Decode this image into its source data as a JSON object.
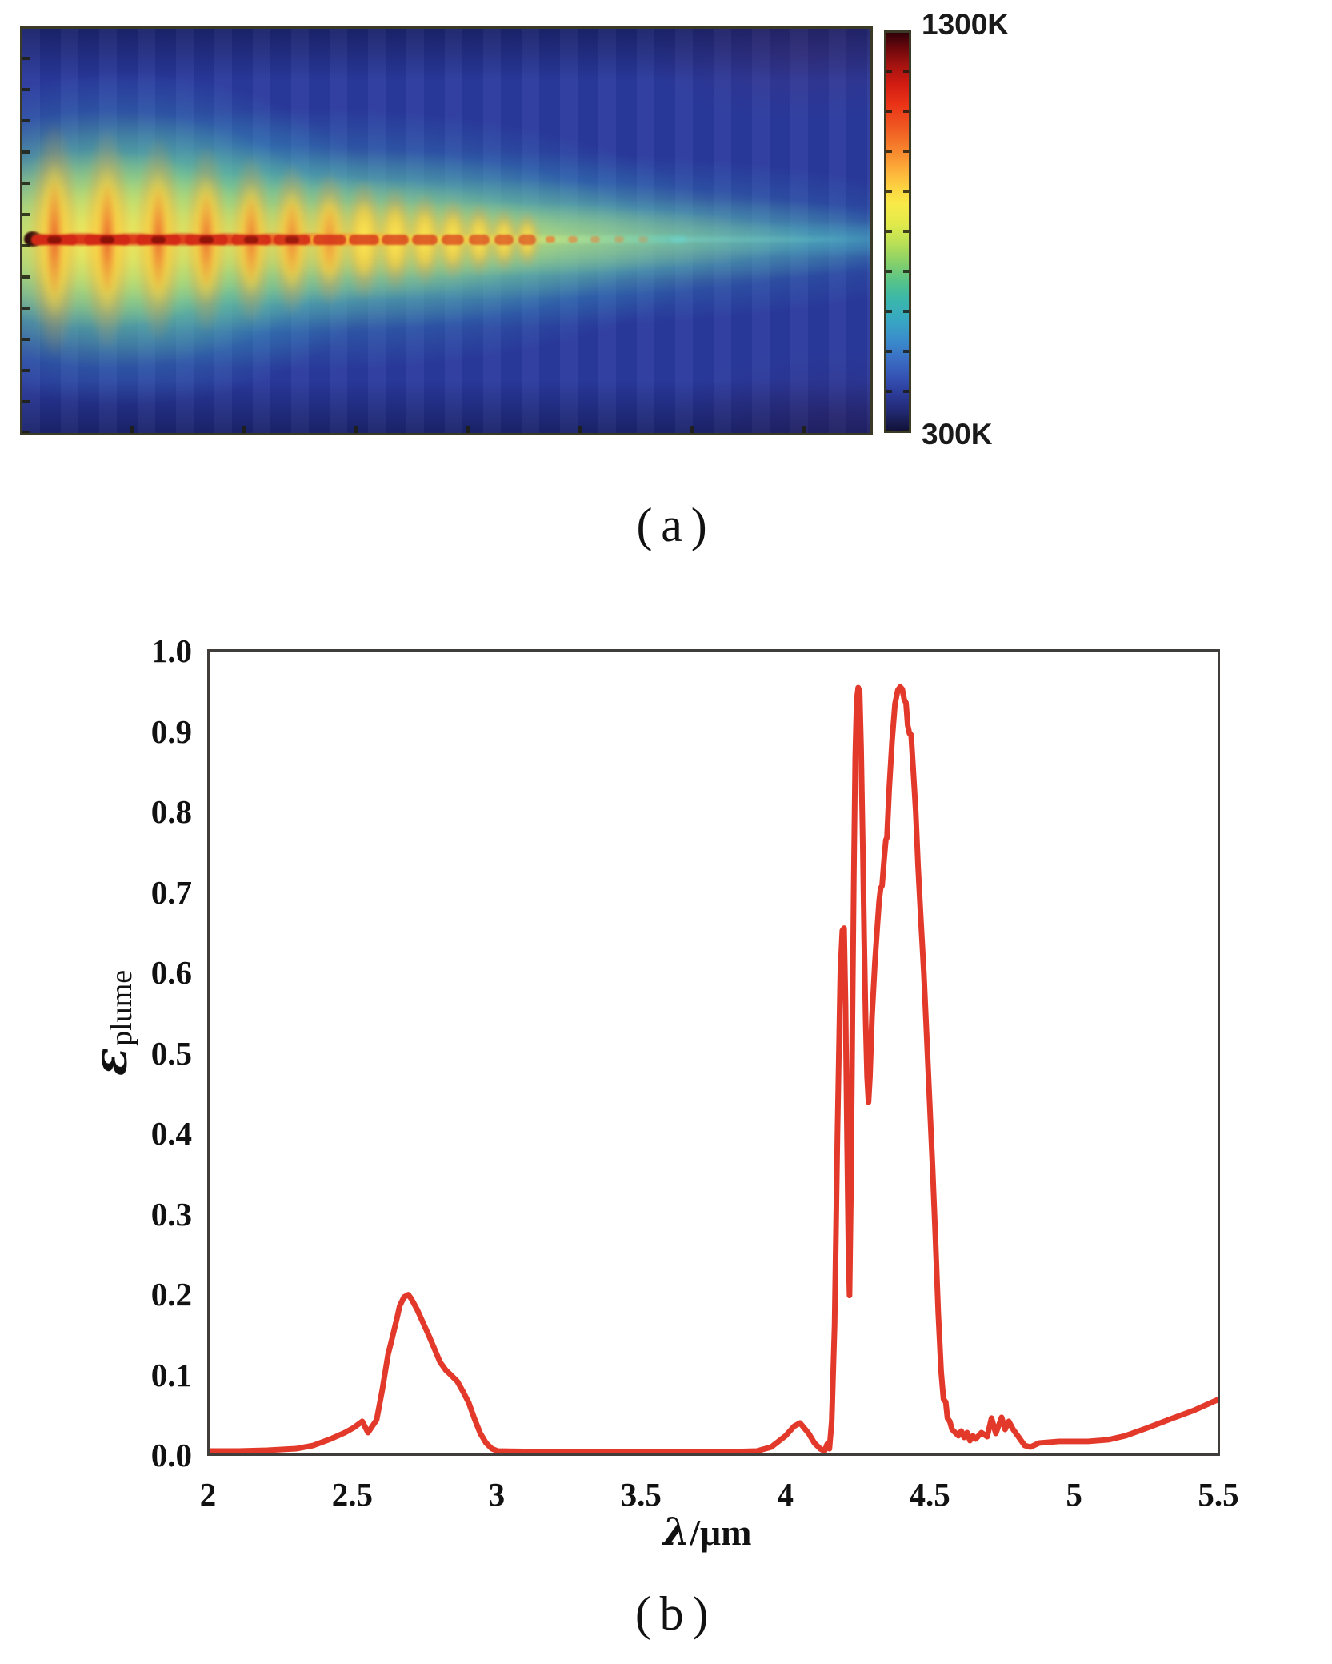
{
  "figure": {
    "panel_a_label": "(a)",
    "panel_b_label": "(b)"
  },
  "chart_data": [
    {
      "id": "plume-temperature-field",
      "type": "heatmap",
      "content": "infrared temperature field of a supersonic exhaust plume with periodic shock cells along the axis",
      "colormap": "jet",
      "colorbar": {
        "max_label": "1300K",
        "min_label": "300K",
        "max_value": 1300,
        "min_value": 300,
        "unit": "K"
      },
      "panel_label": "(a)",
      "shock_cells": [
        [
          40,
          295,
          1.0
        ],
        [
          106,
          280,
          1.0
        ],
        [
          170,
          260,
          0.95
        ],
        [
          230,
          238,
          0.9
        ],
        [
          286,
          215,
          0.82
        ],
        [
          337,
          193,
          0.74
        ],
        [
          384,
          172,
          0.65
        ],
        [
          427,
          152,
          0.56
        ],
        [
          466,
          134,
          0.48
        ],
        [
          503,
          118,
          0.42
        ],
        [
          538,
          104,
          0.36
        ],
        [
          571,
          92,
          0.3
        ],
        [
          602,
          81,
          0.25
        ],
        [
          631,
          72,
          0.2
        ]
      ],
      "tail_dots": [
        [
          660,
          0.75
        ],
        [
          688,
          0.6
        ],
        [
          716,
          0.5
        ],
        [
          746,
          0.4
        ],
        [
          776,
          0.3
        ]
      ]
    },
    {
      "id": "plume-emissivity-spectrum",
      "type": "line",
      "xlabel": "λ/μm",
      "xlabel_parts": [
        "λ",
        "/μm"
      ],
      "ylabel": "ε_plume",
      "ylabel_parts": [
        "ε",
        "plume"
      ],
      "xlim": [
        2,
        5.5
      ],
      "ylim": [
        0,
        1
      ],
      "x_ticks": [
        "2",
        "2.5",
        "3",
        "3.5",
        "4",
        "4.5",
        "5",
        "5.5"
      ],
      "y_ticks": [
        "0.0",
        "0.1",
        "0.2",
        "0.3",
        "0.4",
        "0.5",
        "0.6",
        "0.7",
        "0.8",
        "0.9",
        "1.0"
      ],
      "grid": false,
      "legend": "none",
      "series": [
        {
          "name": "plume spectral emissivity",
          "color": "#e2392b",
          "points": [
            [
              2.0,
              0.003
            ],
            [
              2.1,
              0.003
            ],
            [
              2.2,
              0.004
            ],
            [
              2.3,
              0.006
            ],
            [
              2.36,
              0.01
            ],
            [
              2.42,
              0.018
            ],
            [
              2.47,
              0.026
            ],
            [
              2.5,
              0.032
            ],
            [
              2.53,
              0.04
            ],
            [
              2.55,
              0.026
            ],
            [
              2.58,
              0.042
            ],
            [
              2.6,
              0.08
            ],
            [
              2.62,
              0.124
            ],
            [
              2.63,
              0.138
            ],
            [
              2.65,
              0.168
            ],
            [
              2.66,
              0.184
            ],
            [
              2.675,
              0.195
            ],
            [
              2.69,
              0.198
            ],
            [
              2.7,
              0.193
            ],
            [
              2.72,
              0.18
            ],
            [
              2.74,
              0.164
            ],
            [
              2.76,
              0.148
            ],
            [
              2.78,
              0.131
            ],
            [
              2.8,
              0.114
            ],
            [
              2.82,
              0.104
            ],
            [
              2.84,
              0.097
            ],
            [
              2.86,
              0.09
            ],
            [
              2.88,
              0.077
            ],
            [
              2.9,
              0.063
            ],
            [
              2.92,
              0.043
            ],
            [
              2.94,
              0.025
            ],
            [
              2.96,
              0.013
            ],
            [
              2.98,
              0.006
            ],
            [
              3.0,
              0.003
            ],
            [
              3.2,
              0.002
            ],
            [
              3.4,
              0.002
            ],
            [
              3.6,
              0.002
            ],
            [
              3.8,
              0.002
            ],
            [
              3.9,
              0.003
            ],
            [
              3.95,
              0.008
            ],
            [
              4.0,
              0.022
            ],
            [
              4.03,
              0.034
            ],
            [
              4.05,
              0.038
            ],
            [
              4.08,
              0.025
            ],
            [
              4.1,
              0.013
            ],
            [
              4.12,
              0.006
            ],
            [
              4.135,
              0.003
            ],
            [
              4.145,
              0.012
            ],
            [
              4.152,
              0.006
            ],
            [
              4.16,
              0.04
            ],
            [
              4.17,
              0.16
            ],
            [
              4.18,
              0.4
            ],
            [
              4.19,
              0.6
            ],
            [
              4.197,
              0.652
            ],
            [
              4.203,
              0.655
            ],
            [
              4.208,
              0.56
            ],
            [
              4.213,
              0.4
            ],
            [
              4.218,
              0.26
            ],
            [
              4.222,
              0.197
            ],
            [
              4.227,
              0.33
            ],
            [
              4.232,
              0.54
            ],
            [
              4.237,
              0.72
            ],
            [
              4.242,
              0.87
            ],
            [
              4.247,
              0.94
            ],
            [
              4.252,
              0.955
            ],
            [
              4.257,
              0.95
            ],
            [
              4.262,
              0.88
            ],
            [
              4.268,
              0.76
            ],
            [
              4.273,
              0.64
            ],
            [
              4.278,
              0.54
            ],
            [
              4.283,
              0.47
            ],
            [
              4.288,
              0.438
            ],
            [
              4.293,
              0.47
            ],
            [
              4.3,
              0.545
            ],
            [
              4.31,
              0.612
            ],
            [
              4.318,
              0.655
            ],
            [
              4.325,
              0.69
            ],
            [
              4.33,
              0.705
            ],
            [
              4.335,
              0.708
            ],
            [
              4.342,
              0.74
            ],
            [
              4.348,
              0.765
            ],
            [
              4.352,
              0.768
            ],
            [
              4.36,
              0.83
            ],
            [
              4.37,
              0.89
            ],
            [
              4.38,
              0.935
            ],
            [
              4.39,
              0.952
            ],
            [
              4.398,
              0.956
            ],
            [
              4.405,
              0.953
            ],
            [
              4.412,
              0.94
            ],
            [
              4.418,
              0.936
            ],
            [
              4.424,
              0.908
            ],
            [
              4.43,
              0.898
            ],
            [
              4.436,
              0.896
            ],
            [
              4.444,
              0.848
            ],
            [
              4.452,
              0.8
            ],
            [
              4.46,
              0.732
            ],
            [
              4.47,
              0.664
            ],
            [
              4.48,
              0.6
            ],
            [
              4.49,
              0.52
            ],
            [
              4.5,
              0.44
            ],
            [
              4.51,
              0.358
            ],
            [
              4.52,
              0.27
            ],
            [
              4.53,
              0.175
            ],
            [
              4.54,
              0.102
            ],
            [
              4.548,
              0.068
            ],
            [
              4.556,
              0.064
            ],
            [
              4.562,
              0.044
            ],
            [
              4.57,
              0.04
            ],
            [
              4.578,
              0.03
            ],
            [
              4.586,
              0.027
            ],
            [
              4.6,
              0.022
            ],
            [
              4.61,
              0.028
            ],
            [
              4.62,
              0.02
            ],
            [
              4.63,
              0.026
            ],
            [
              4.64,
              0.016
            ],
            [
              4.65,
              0.022
            ],
            [
              4.66,
              0.018
            ],
            [
              4.68,
              0.026
            ],
            [
              4.7,
              0.021
            ],
            [
              4.715,
              0.044
            ],
            [
              4.73,
              0.025
            ],
            [
              4.75,
              0.045
            ],
            [
              4.762,
              0.03
            ],
            [
              4.775,
              0.04
            ],
            [
              4.79,
              0.03
            ],
            [
              4.81,
              0.02
            ],
            [
              4.83,
              0.01
            ],
            [
              4.85,
              0.008
            ],
            [
              4.88,
              0.013
            ],
            [
              4.95,
              0.015
            ],
            [
              5.05,
              0.015
            ],
            [
              5.12,
              0.017
            ],
            [
              5.18,
              0.022
            ],
            [
              5.25,
              0.031
            ],
            [
              5.33,
              0.042
            ],
            [
              5.42,
              0.054
            ],
            [
              5.5,
              0.067
            ]
          ]
        }
      ],
      "panel_label": "(b)"
    }
  ]
}
